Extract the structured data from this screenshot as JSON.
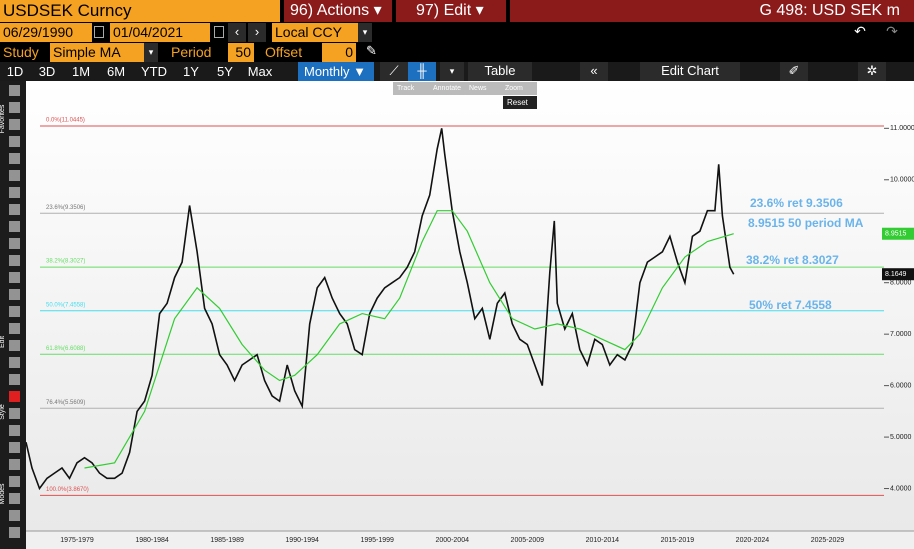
{
  "header": {
    "security": "USDSEK Curncy",
    "actions": "96) Actions ▾",
    "edit": "97) Edit ▾",
    "function": "G 498: USD SEK m"
  },
  "date_range": {
    "start": "06/29/1990",
    "end": "01/04/2021",
    "currency": "Local CCY"
  },
  "study": {
    "label": "Study",
    "name": "Simple MA",
    "period_label": "Period",
    "period": "50",
    "offset_label": "Offset",
    "offset": "0"
  },
  "periods": [
    "1D",
    "3D",
    "1M",
    "6M",
    "YTD",
    "1Y",
    "5Y",
    "Max"
  ],
  "frequency": "Monthly ▼",
  "table": "Table",
  "edit_chart": "Edit Chart",
  "tools": [
    "Track",
    "Annotate",
    "News",
    "Zoom"
  ],
  "reset": "Reset",
  "sidebar": [
    "Favorites",
    "Edit",
    "Style",
    "Modes"
  ],
  "chart_data": {
    "type": "line",
    "xlim": [
      1974.1,
      2031
    ],
    "xticks": [
      {
        "value": 1977.5,
        "label": "1975-1979"
      },
      {
        "value": 1982.5,
        "label": "1980-1984"
      },
      {
        "value": 1987.5,
        "label": "1985-1989"
      },
      {
        "value": 1992.5,
        "label": "1990-1994"
      },
      {
        "value": 1997.5,
        "label": "1995-1999"
      },
      {
        "value": 2002.5,
        "label": "2000-2004"
      },
      {
        "value": 2007.5,
        "label": "2005-2009"
      },
      {
        "value": 2012.5,
        "label": "2010-2014"
      },
      {
        "value": 2017.5,
        "label": "2015-2019"
      },
      {
        "value": 2022.5,
        "label": "2020-2024"
      },
      {
        "value": 2027.5,
        "label": "2025-2029"
      }
    ],
    "ylim": [
      3.35,
      11.9
    ],
    "yticks": [
      {
        "value": 4,
        "label": "4.0000"
      },
      {
        "value": 5,
        "label": "5.0000"
      },
      {
        "value": 6,
        "label": "6.0000"
      },
      {
        "value": 7,
        "label": "7.0000"
      },
      {
        "value": 8,
        "label": "8.0000"
      },
      {
        "value": 9,
        "label": "9.0000"
      },
      {
        "value": 10,
        "label": "10.0000"
      },
      {
        "value": 11,
        "label": "11.0000"
      }
    ],
    "series": [
      {
        "name": "USDSEK",
        "color": "#111111",
        "x": [
          1974.1,
          1974.5,
          1975,
          1975.5,
          1976,
          1976.5,
          1977,
          1977.5,
          1978,
          1978.5,
          1979,
          1979.5,
          1980,
          1980.5,
          1981,
          1981.5,
          1982,
          1982.5,
          1983,
          1983.5,
          1984,
          1984.5,
          1985,
          1985.5,
          1986,
          1986.5,
          1987,
          1987.5,
          1988,
          1988.5,
          1989,
          1989.5,
          1990,
          1990.5,
          1991,
          1991.5,
          1992,
          1992.5,
          1993,
          1993.5,
          1994,
          1994.5,
          1995,
          1995.5,
          1996,
          1996.5,
          1997,
          1997.5,
          1998,
          1998.5,
          1999,
          1999.5,
          2000,
          2000.5,
          2001,
          2001.5,
          2001.8,
          2002,
          2002.5,
          2003,
          2003.5,
          2004,
          2004.5,
          2005,
          2005.5,
          2006,
          2006.5,
          2007,
          2007.5,
          2008,
          2008.5,
          2009,
          2009.3,
          2009.5,
          2010,
          2010.5,
          2011,
          2011.5,
          2012,
          2012.5,
          2013,
          2013.5,
          2014,
          2014.5,
          2015,
          2015.5,
          2016,
          2016.5,
          2017,
          2017.5,
          2018,
          2018.5,
          2019,
          2019.5,
          2020,
          2020.25,
          2020.5,
          2021,
          2021.25
        ],
        "values": [
          4.9,
          4.4,
          4.0,
          4.2,
          4.3,
          4.4,
          4.2,
          4.5,
          4.6,
          4.5,
          4.3,
          4.2,
          4.2,
          4.3,
          4.7,
          5.5,
          5.7,
          6.2,
          7.4,
          7.6,
          8.1,
          8.4,
          9.5,
          8.6,
          7.5,
          7.2,
          6.6,
          6.4,
          6.1,
          6.4,
          6.5,
          6.6,
          6.1,
          5.8,
          5.7,
          6.4,
          5.9,
          5.6,
          7.2,
          7.9,
          8.1,
          7.7,
          7.4,
          7.2,
          6.7,
          6.6,
          7.4,
          7.7,
          7.9,
          8.0,
          8.1,
          8.3,
          8.6,
          9.3,
          9.7,
          10.6,
          11.0,
          10.5,
          9.4,
          8.6,
          8.0,
          7.3,
          7.5,
          6.9,
          7.6,
          7.8,
          7.2,
          6.9,
          6.8,
          6.4,
          6.0,
          8.2,
          9.2,
          7.6,
          7.1,
          7.4,
          6.7,
          6.4,
          6.9,
          6.8,
          6.4,
          6.6,
          6.5,
          6.8,
          8.0,
          8.4,
          8.5,
          8.6,
          8.9,
          8.4,
          8.0,
          8.9,
          9.0,
          9.4,
          9.4,
          10.3,
          9.3,
          8.3,
          8.1649
        ]
      },
      {
        "name": "50 period MA",
        "color": "#33cc33",
        "x": [
          1978,
          1980,
          1982,
          1984,
          1985.5,
          1987,
          1988.5,
          1990,
          1991,
          1992,
          1993.5,
          1995,
          1996.5,
          1998,
          1999,
          2000.5,
          2001.5,
          2002.5,
          2003.5,
          2005,
          2006.5,
          2008,
          2009.5,
          2011,
          2012.5,
          2014,
          2015,
          2016.5,
          2018,
          2019.5,
          2021.25
        ],
        "values": [
          4.4,
          4.5,
          5.5,
          7.3,
          7.9,
          7.5,
          6.8,
          6.3,
          6.1,
          6.2,
          6.6,
          7.2,
          7.4,
          7.3,
          7.7,
          8.8,
          9.4,
          9.4,
          9.0,
          8.0,
          7.3,
          7.1,
          7.2,
          7.1,
          6.9,
          6.7,
          7.0,
          7.9,
          8.5,
          8.8,
          8.9515
        ]
      }
    ],
    "fib_levels": [
      {
        "value": 11.0445,
        "label": "0.0%(11.0445)",
        "color": "#e05050"
      },
      {
        "value": 9.3506,
        "label": "23.6%(9.3506)",
        "color": "#b0b0b0"
      },
      {
        "value": 8.3027,
        "label": "38.2%(8.3027)",
        "color": "#66dd66"
      },
      {
        "value": 7.4558,
        "label": "50.0%(7.4558)",
        "color": "#44ddee"
      },
      {
        "value": 6.6088,
        "label": "61.8%(6.6088)",
        "color": "#66dd66"
      },
      {
        "value": 5.5609,
        "label": "76.4%(5.5609)",
        "color": "#b0b0b0"
      },
      {
        "value": 3.867,
        "label": "100.0%(3.8670)",
        "color": "#e05050"
      }
    ],
    "annotations": [
      {
        "text": "23.6% ret 9.3506",
        "color": "#6ab4ea"
      },
      {
        "text": "8.9515 50 period MA",
        "color": "#6ab4ea"
      },
      {
        "text": "38.2% ret 8.3027",
        "color": "#6ab4ea"
      },
      {
        "text": "50% ret 7.4558",
        "color": "#6ab4ea"
      }
    ],
    "price_tags": [
      {
        "value": 8.9515,
        "color": "#33cc33"
      },
      {
        "value": 8.1649,
        "color": "#111111"
      }
    ]
  }
}
